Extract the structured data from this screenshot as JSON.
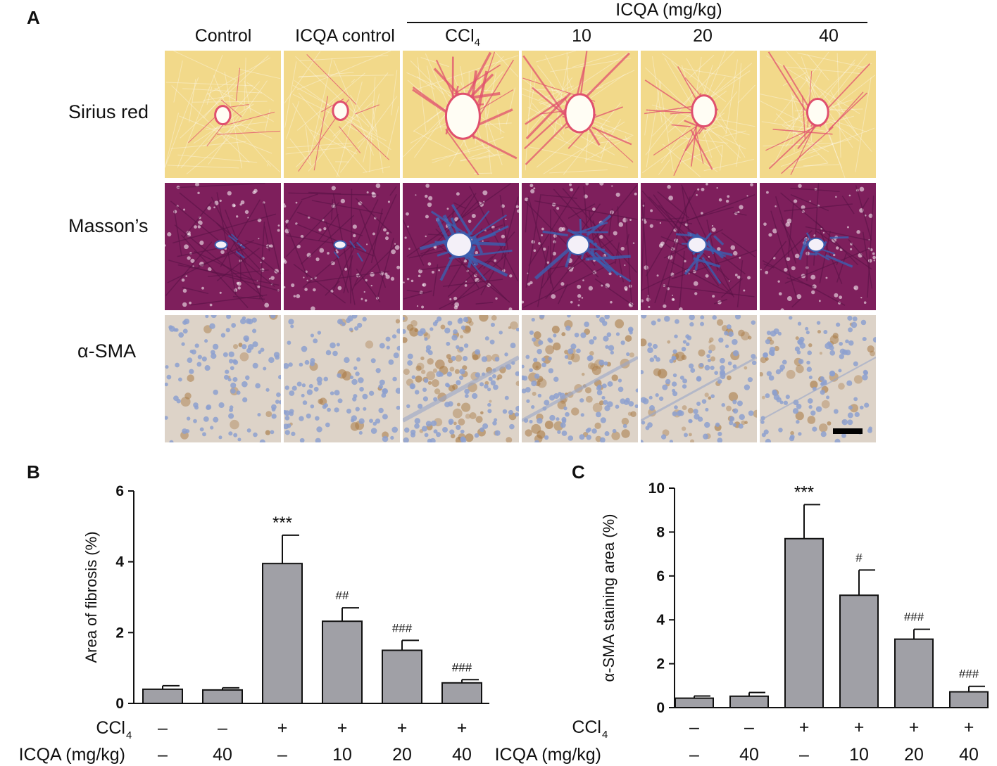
{
  "panelA": {
    "letter": "A",
    "group_label": "ICQA (mg/kg)",
    "columns": [
      "Control",
      "ICQA control",
      "CCl",
      "10",
      "20",
      "40"
    ],
    "ccl_subscript": "4",
    "rows": [
      "Sirius red",
      "Masson’s",
      "α-SMA"
    ],
    "stain_colors": {
      "sirius_bg": "#f2d98a",
      "sirius_fiber": "#e0506e",
      "masson_bg": "#7e1f5c",
      "masson_fiber": "#3b5fb0",
      "sma_bg": "#ddd3c8",
      "sma_nuclei": "#8da0cf",
      "sma_brown": "#a87a45"
    }
  },
  "chart_data": [
    {
      "panel": "B",
      "type": "bar",
      "ylabel": "Area of fibrosis (%)",
      "ylim": [
        0,
        6
      ],
      "yticks": [
        "0",
        "2",
        "4",
        "6"
      ],
      "categories": [
        "1",
        "2",
        "3",
        "4",
        "5",
        "6"
      ],
      "series": [
        {
          "values": [
            0.4,
            0.38,
            3.95,
            2.32,
            1.5,
            0.58
          ],
          "errors": [
            0.1,
            0.06,
            0.8,
            0.38,
            0.28,
            0.09
          ],
          "color": "#a0a0a6"
        }
      ],
      "annotations": [
        "",
        "",
        "***",
        "##",
        "###",
        "###"
      ],
      "conditions": [
        {
          "label": "CCl",
          "sub": "4",
          "values": [
            "–",
            "–",
            "+",
            "+",
            "+",
            "+"
          ]
        },
        {
          "label": "ICQA (mg/kg)",
          "sub": "",
          "values": [
            "–",
            "40",
            "–",
            "10",
            "20",
            "40"
          ]
        }
      ]
    },
    {
      "panel": "C",
      "type": "bar",
      "ylabel": "α-SMA staining area (%)",
      "ylim": [
        0,
        10
      ],
      "yticks": [
        "0",
        "2",
        "4",
        "6",
        "8",
        "10"
      ],
      "categories": [
        "1",
        "2",
        "3",
        "4",
        "5",
        "6"
      ],
      "series": [
        {
          "values": [
            0.43,
            0.52,
            7.7,
            5.12,
            3.12,
            0.72
          ],
          "errors": [
            0.1,
            0.17,
            1.55,
            1.15,
            0.45,
            0.25
          ],
          "color": "#a0a0a6"
        }
      ],
      "annotations": [
        "",
        "",
        "***",
        "#",
        "###",
        "###"
      ],
      "conditions": [
        {
          "label": "CCl",
          "sub": "4",
          "values": [
            "–",
            "–",
            "+",
            "+",
            "+",
            "+"
          ]
        },
        {
          "label": "ICQA (mg/kg)",
          "sub": "",
          "values": [
            "–",
            "40",
            "–",
            "10",
            "20",
            "40"
          ]
        }
      ]
    }
  ]
}
